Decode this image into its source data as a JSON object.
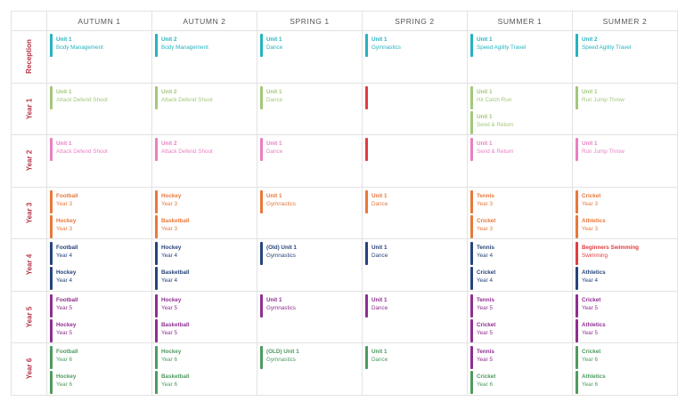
{
  "columns": [
    "AUTUMN 1",
    "AUTUMN 2",
    "SPRING 1",
    "SPRING 2",
    "SUMMER 1",
    "SUMMER 2"
  ],
  "colors": {
    "teal": "#26b3bf",
    "lime": "#a3c77a",
    "pink": "#e97fc2",
    "orange": "#e8783b",
    "navy": "#27447a",
    "purple": "#8e2f8f",
    "green": "#4e9a5f",
    "red": "#e23c40",
    "rowlabel": "#b8364a"
  },
  "rows": [
    {
      "label": "Reception",
      "cells": [
        [
          {
            "title": "Unit 1",
            "sub": "Body Management",
            "color": "teal"
          }
        ],
        [
          {
            "title": "Unit 2",
            "sub": "Body Management",
            "color": "teal"
          }
        ],
        [
          {
            "title": "Unit 1",
            "sub": "Dance",
            "color": "teal"
          }
        ],
        [
          {
            "title": "Unit 1",
            "sub": "Gymnastics",
            "color": "teal"
          }
        ],
        [
          {
            "title": "Unit 1",
            "sub": "Speed Agility Travel",
            "color": "teal"
          }
        ],
        [
          {
            "title": "Unit 2",
            "sub": "Speed Agility Travel",
            "color": "teal"
          }
        ]
      ]
    },
    {
      "label": "Year 1",
      "cells": [
        [
          {
            "title": "Unit 1",
            "sub": "Attack Defend Shoot",
            "color": "lime"
          }
        ],
        [
          {
            "title": "Unit 2",
            "sub": "Attack Defend Shoot",
            "color": "lime"
          }
        ],
        [
          {
            "title": "Unit 1",
            "sub": "Dance",
            "color": "lime"
          }
        ],
        [
          {
            "title": "",
            "sub": "",
            "color": "red"
          }
        ],
        [
          {
            "title": "Unit 1",
            "sub": "Hit Catch Run",
            "color": "lime"
          },
          {
            "title": "Unit 1",
            "sub": "Send & Return",
            "color": "lime"
          }
        ],
        [
          {
            "title": "Unit 1",
            "sub": "Run Jump Throw",
            "color": "lime"
          }
        ]
      ]
    },
    {
      "label": "Year 2",
      "cells": [
        [
          {
            "title": "Unit 1",
            "sub": "Attack Defend Shoot",
            "color": "pink"
          }
        ],
        [
          {
            "title": "Unit 2",
            "sub": "Attack Defend Shoot",
            "color": "pink"
          }
        ],
        [
          {
            "title": "Unit 1",
            "sub": "Dance",
            "color": "pink"
          }
        ],
        [
          {
            "title": "",
            "sub": "",
            "color": "red"
          }
        ],
        [
          {
            "title": "Unit 1",
            "sub": "Send & Return",
            "color": "pink"
          }
        ],
        [
          {
            "title": "Unit 1",
            "sub": "Run Jump Throw",
            "color": "pink"
          }
        ]
      ]
    },
    {
      "label": "Year 3",
      "cells": [
        [
          {
            "title": "Football",
            "sub": "Year 3",
            "color": "orange"
          },
          {
            "title": "Hockey",
            "sub": "Year 3",
            "color": "orange"
          }
        ],
        [
          {
            "title": "Hockey",
            "sub": "Year 3",
            "color": "orange"
          },
          {
            "title": "Basketball",
            "sub": "Year 3",
            "color": "orange"
          }
        ],
        [
          {
            "title": "Unit 1",
            "sub": "Gymnastics",
            "color": "orange"
          }
        ],
        [
          {
            "title": "Unit 1",
            "sub": "Dance",
            "color": "orange"
          }
        ],
        [
          {
            "title": "Tennis",
            "sub": "Year 3",
            "color": "orange"
          },
          {
            "title": "Cricket",
            "sub": "Year 3",
            "color": "orange"
          }
        ],
        [
          {
            "title": "Cricket",
            "sub": "Year 3",
            "color": "orange"
          },
          {
            "title": "Athletics",
            "sub": "Year 3",
            "color": "orange"
          }
        ]
      ]
    },
    {
      "label": "Year 4",
      "cells": [
        [
          {
            "title": "Football",
            "sub": "Year 4",
            "color": "navy"
          },
          {
            "title": "Hockey",
            "sub": "Year 4",
            "color": "navy"
          }
        ],
        [
          {
            "title": "Hockey",
            "sub": "Year 4",
            "color": "navy"
          },
          {
            "title": "Basketball",
            "sub": "Year 4",
            "color": "navy"
          }
        ],
        [
          {
            "title": "(Old) Unit 1",
            "sub": "Gymnastics",
            "color": "navy"
          }
        ],
        [
          {
            "title": "Unit 1",
            "sub": "Dance",
            "color": "navy"
          }
        ],
        [
          {
            "title": "Tennis",
            "sub": "Year 4",
            "color": "navy"
          },
          {
            "title": "Cricket",
            "sub": "Year 4",
            "color": "navy"
          }
        ],
        [
          {
            "title": "Beginners Swimming",
            "sub": "Swimming",
            "color": "red"
          },
          {
            "title": "Athletics",
            "sub": "Year 4",
            "color": "navy"
          }
        ]
      ]
    },
    {
      "label": "Year 5",
      "cells": [
        [
          {
            "title": "Football",
            "sub": "Year 5",
            "color": "purple"
          },
          {
            "title": "Hockey",
            "sub": "Year 5",
            "color": "purple"
          }
        ],
        [
          {
            "title": "Hockey",
            "sub": "Year 5",
            "color": "purple"
          },
          {
            "title": "Basketball",
            "sub": "Year 5",
            "color": "purple"
          }
        ],
        [
          {
            "title": "Unit 1",
            "sub": "Gymnastics",
            "color": "purple"
          }
        ],
        [
          {
            "title": "Unit 1",
            "sub": "Dance",
            "color": "purple"
          }
        ],
        [
          {
            "title": "Tennis",
            "sub": "Year 5",
            "color": "purple"
          },
          {
            "title": "Cricket",
            "sub": "Year 5",
            "color": "purple"
          }
        ],
        [
          {
            "title": "Cricket",
            "sub": "Year 5",
            "color": "purple"
          },
          {
            "title": "Athletics",
            "sub": "Year 5",
            "color": "purple"
          }
        ]
      ]
    },
    {
      "label": "Year 6",
      "cells": [
        [
          {
            "title": "Football",
            "sub": "Year 6",
            "color": "green"
          },
          {
            "title": "Hockey",
            "sub": "Year 6",
            "color": "green"
          }
        ],
        [
          {
            "title": "Hockey",
            "sub": "Year 6",
            "color": "green"
          },
          {
            "title": "Basketball",
            "sub": "Year 6",
            "color": "green"
          }
        ],
        [
          {
            "title": "(OLD) Unit 1",
            "sub": "Gymnastics",
            "color": "green"
          }
        ],
        [
          {
            "title": "Unit 1",
            "sub": "Dance",
            "color": "green"
          }
        ],
        [
          {
            "title": "Tennis",
            "sub": "Year 5",
            "color": "purple"
          },
          {
            "title": "Cricket",
            "sub": "Year 6",
            "color": "green"
          }
        ],
        [
          {
            "title": "Cricket",
            "sub": "Year 6",
            "color": "green"
          },
          {
            "title": "Athletics",
            "sub": "Year 6",
            "color": "green"
          }
        ]
      ]
    }
  ]
}
